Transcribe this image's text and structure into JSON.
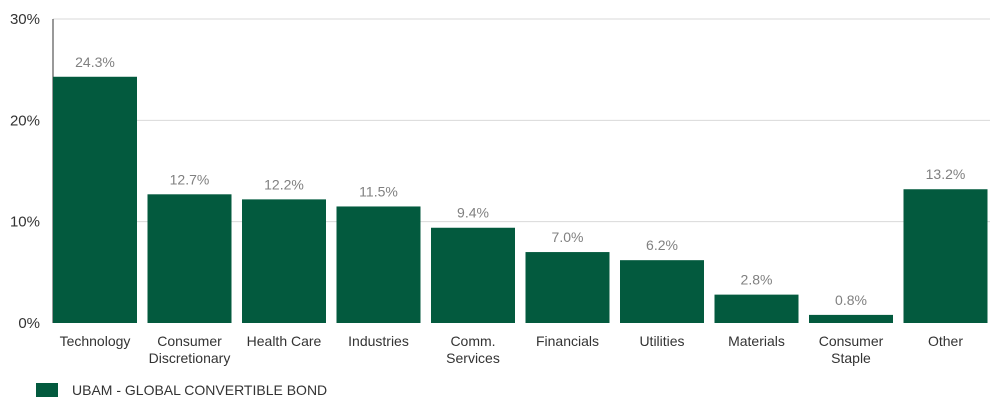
{
  "chart_data": {
    "type": "bar",
    "categories": [
      [
        "Technology"
      ],
      [
        "Consumer",
        "Discretionary"
      ],
      [
        "Health Care"
      ],
      [
        "Industries"
      ],
      [
        "Comm.",
        "Services"
      ],
      [
        "Financials"
      ],
      [
        "Utilities"
      ],
      [
        "Materials"
      ],
      [
        "Consumer",
        "Staple"
      ],
      [
        "Other"
      ]
    ],
    "series": [
      {
        "name": "UBAM - GLOBAL CONVERTIBLE BOND",
        "values": [
          24.3,
          12.7,
          12.2,
          11.5,
          9.4,
          7.0,
          6.2,
          2.8,
          0.8,
          13.2
        ],
        "labels": [
          "24.3%",
          "12.7%",
          "12.2%",
          "11.5%",
          "9.4%",
          "7.0%",
          "6.2%",
          "2.8%",
          "0.8%",
          "13.2%"
        ]
      }
    ],
    "yticks": [
      0,
      10,
      20,
      30
    ],
    "ytick_labels": [
      "0%",
      "10%",
      "20%",
      "30%"
    ],
    "ylim": [
      0,
      30
    ],
    "grid": true,
    "legend_position": "bottom-left",
    "colors": {
      "bar": "#035a3e",
      "grid": "#d9d9d9",
      "tick_text": "#333333",
      "value_label": "#808080"
    }
  }
}
